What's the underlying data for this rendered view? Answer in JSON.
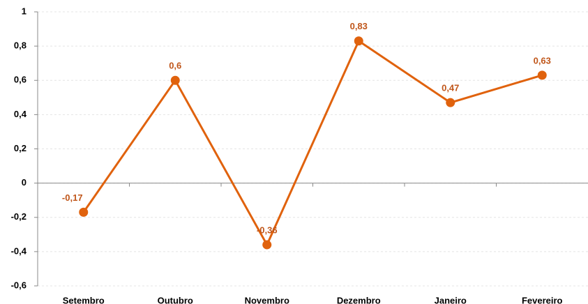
{
  "chart_data": {
    "type": "line",
    "categories": [
      "Setembro",
      "Outubro",
      "Novembro",
      "Dezembro",
      "Janeiro",
      "Fevereiro"
    ],
    "values": [
      -0.17,
      0.6,
      -0.36,
      0.83,
      0.47,
      0.63
    ],
    "value_labels": [
      "-0,17",
      "0,6",
      "-0,36",
      "0,83",
      "0,47",
      "0,63"
    ],
    "color": "#e0620d",
    "ylim": [
      -0.6,
      1
    ],
    "yticks": [
      {
        "value": -0.6,
        "label": "-0,6"
      },
      {
        "value": -0.4,
        "label": "-0,4"
      },
      {
        "value": -0.2,
        "label": "-0,2"
      },
      0,
      {
        "value": 0.2,
        "label": "0,2"
      },
      {
        "value": 0.4,
        "label": "0,4"
      },
      {
        "value": 0.6,
        "label": "0,6"
      },
      {
        "value": 0.8,
        "label": "0,8"
      },
      1
    ],
    "grid": true
  }
}
